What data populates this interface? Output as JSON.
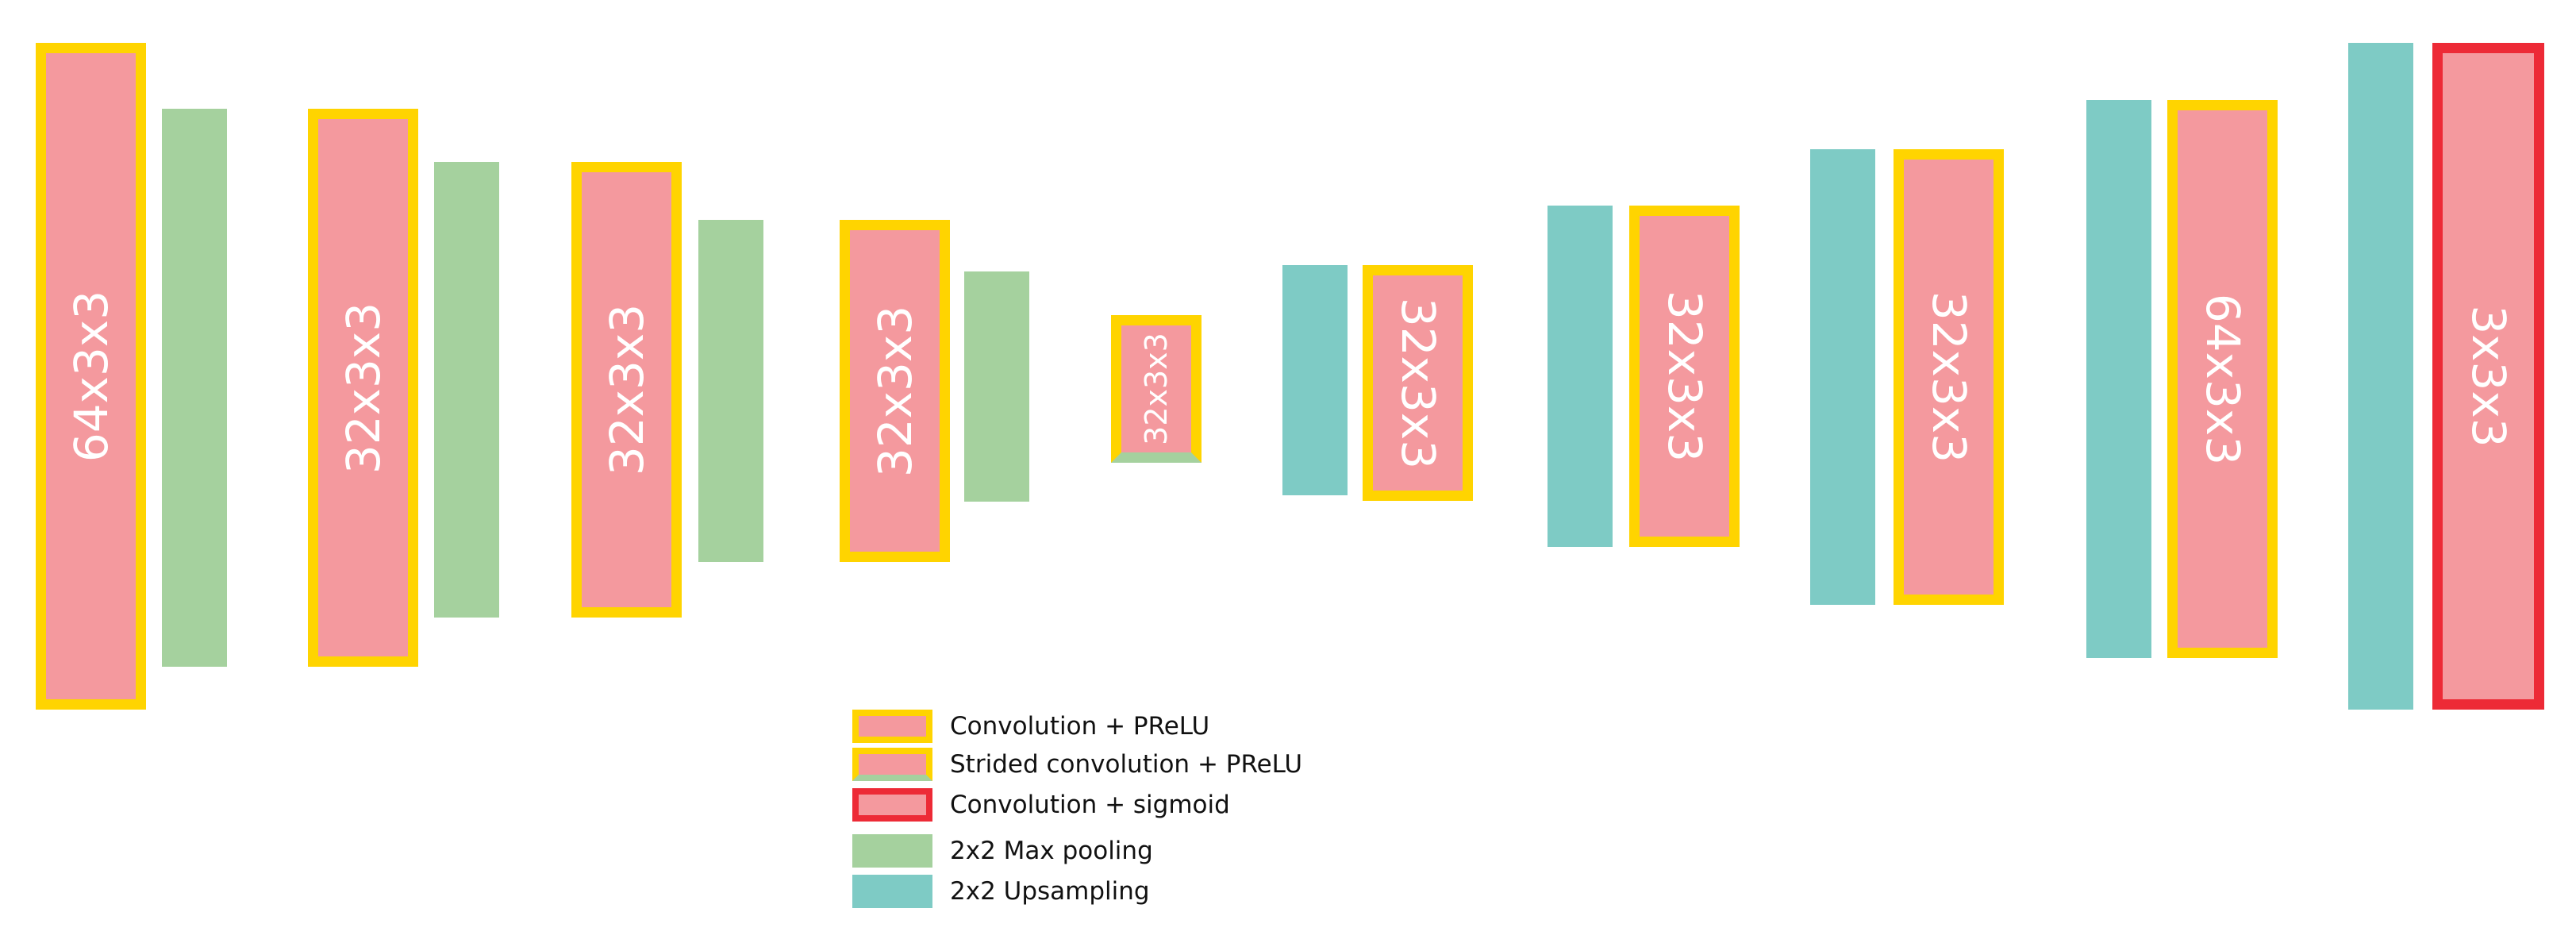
{
  "colors": {
    "conv_fill": "#f4999e",
    "conv_border": "#ffd400",
    "sigmoid_border": "#ed2a36",
    "pool": "#a5d19e",
    "upsample": "#7ecbc5",
    "label_text": "#ffffff"
  },
  "encoder": {
    "conv1_label": "64x3x3",
    "conv2_label": "32x3x3",
    "conv3_label": "32x3x3",
    "conv4_label": "32x3x3",
    "bottleneck_label": "32x3x3"
  },
  "decoder": {
    "conv1_label": "32x3x3",
    "conv2_label": "32x3x3",
    "conv3_label": "32x3x3",
    "conv4_label": "64x3x3",
    "output_label": "3x3x3"
  },
  "legend": {
    "conv_prelu": "Convolution + PReLU",
    "strided_conv_prelu": "Strided convolution + PReLU",
    "conv_sigmoid": "Convolution + sigmoid",
    "max_pooling": "2x2 Max pooling",
    "upsampling": "2x2 Upsampling"
  }
}
